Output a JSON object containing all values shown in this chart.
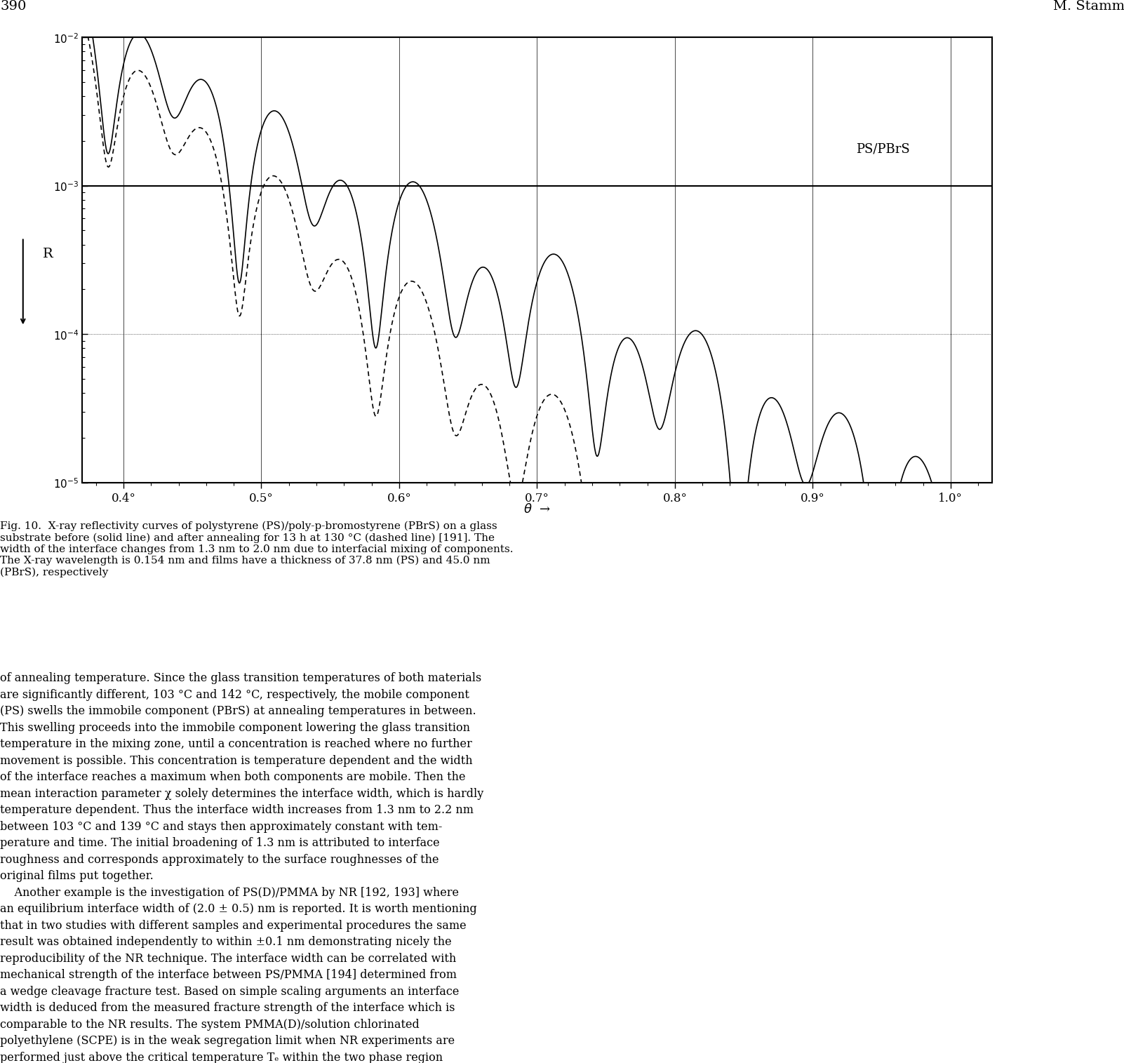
{
  "title_page": "390",
  "title_author": "M. Stamm",
  "label_ps_pbrs": "PS/PBrS",
  "xlabel": "θ",
  "ylabel": "R",
  "xlim": [
    0.37,
    1.03
  ],
  "ylim_log": [
    -5,
    -2
  ],
  "x_ticks": [
    0.4,
    0.5,
    0.6,
    0.7,
    0.8,
    0.9,
    1.0
  ],
  "x_tick_labels": [
    "0.4°",
    "0.5°",
    "0.6°",
    "0.7°",
    "0.8°",
    "0.9°",
    "1.0°"
  ],
  "solid_color": "#000000",
  "dashed_color": "#000000",
  "background_color": "#ffffff",
  "fig_caption": "Fig. 10.  X-ray reflectivity curves of polystyrene (PS)/poly-p-bromostyrene (PBrS) on a glass\nsubstrate before (solid line) and after annealing for 13 h at 130 °C (dashed line) [191]. The\nwidth of the interface changes from 1.3 nm to 2.0 nm due to interfacial mixing of components.\nThe X-ray wavelength is 0.154 nm and films have a thickness of 37.8 nm (PS) and 45.0 nm\n(PBrS), respectively",
  "body_text": "of annealing temperature. Since the glass transition temperatures of both materials\nare significantly different, 103 °C and 142 °C, respectively, the mobile component\n(PS) swells the immobile component (PBrS) at annealing temperatures in between.\nThis swelling proceeds into the immobile component lowering the glass transition\ntemperature in the mixing zone, until a concentration is reached where no further\nmovement is possible. This concentration is temperature dependent and the width\nof the interface reaches a maximum when both components are mobile. Then the\nmean interaction parameter χ solely determines the interface width, which is hardly\ntemperature dependent. Thus the interface width increases from 1.3 nm to 2.2 nm\nbetween 103 °C and 139 °C and stays then approximately constant with tem-\nperature and time. The initial broadening of 1.3 nm is attributed to interface\nroughness and corresponds approximately to the surface roughnesses of the\noriginal films put together.\n    Another example is the investigation of PS(D)/PMMA by NR [192, 193] where\nan equilibrium interface width of (2.0 ± 0.5) nm is reported. It is worth mentioning\nthat in two studies with different samples and experimental procedures the same\nresult was obtained independently to within ±0.1 nm demonstrating nicely the\nreproducibility of the NR technique. The interface width can be correlated with\nmechanical strength of the interface between PS/PMMA [194] determined from\na wedge cleavage fracture test. Based on simple scaling arguments an interface\nwidth is deduced from the measured fracture strength of the interface which is\ncomparable to the NR results. The system PMMA(D)/solution chlorinated\npolyethylene (SCPE) is in the weak segregation limit when NR experiments are\nperformed just above the critical temperature Tₑ within the two phase region"
}
